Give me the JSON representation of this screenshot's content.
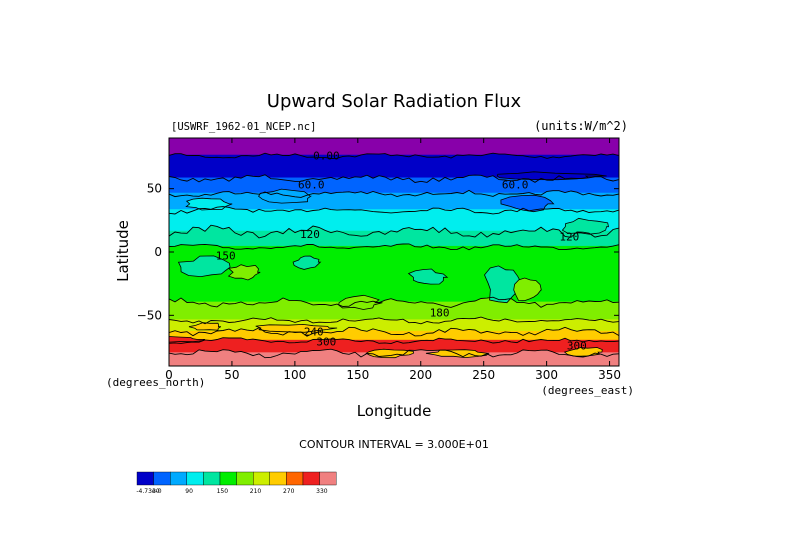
{
  "chart_data": {
    "type": "heatmap",
    "title": "Upward Solar Radiation Flux",
    "dataset_label": "[USWRF_1962-01_NCEP.nc]",
    "units_label": "(units:W/m^2)",
    "xlabel": "Longitude",
    "ylabel": "Latitude",
    "x_unit_note": "(degrees_east)",
    "y_unit_note": "(degrees_north)",
    "xlim": [
      0,
      357.5
    ],
    "ylim": [
      -90,
      90
    ],
    "x_ticks": [
      0,
      50,
      100,
      150,
      200,
      250,
      300,
      350
    ],
    "y_ticks": [
      50,
      0,
      -50
    ],
    "y_tick_labels": [
      "50",
      "0",
      "−50"
    ],
    "contour_interval_text": "CONTOUR INTERVAL = 3.000E+01",
    "contour_labels": [
      {
        "text": "0.00",
        "lon": 125,
        "lat": 73
      },
      {
        "text": "60.0",
        "lon": 113,
        "lat": 50
      },
      {
        "text": "60.0",
        "lon": 275,
        "lat": 50
      },
      {
        "text": "120",
        "lon": 112,
        "lat": 11
      },
      {
        "text": "120",
        "lon": 318,
        "lat": 9
      },
      {
        "text": "150",
        "lon": 45,
        "lat": -6
      },
      {
        "text": "180",
        "lon": 215,
        "lat": -51
      },
      {
        "text": "240",
        "lon": 115,
        "lat": -66
      },
      {
        "text": "300",
        "lon": 125,
        "lat": -74
      },
      {
        "text": "300",
        "lon": 324,
        "lat": -77
      }
    ],
    "bands": [
      {
        "lat_top": 90,
        "lat_bottom": 76,
        "color": "#8800aa",
        "level": "< 0"
      },
      {
        "lat_top": 76,
        "lat_bottom": 58,
        "color": "#0000c8",
        "level": "0-30"
      },
      {
        "lat_top": 58,
        "lat_bottom": 46,
        "color": "#0064ff",
        "level": "30-60"
      },
      {
        "lat_top": 46,
        "lat_bottom": 33,
        "color": "#00aaff",
        "level": "60-90"
      },
      {
        "lat_top": 33,
        "lat_bottom": 16,
        "color": "#00eeee",
        "level": "90-120"
      },
      {
        "lat_top": 16,
        "lat_bottom": 4,
        "color": "#00e6a0",
        "level": "120-150"
      },
      {
        "lat_top": 4,
        "lat_bottom": -40,
        "color": "#00ee00",
        "level": "150-180"
      },
      {
        "lat_top": -40,
        "lat_bottom": -54,
        "color": "#80ee00",
        "level": "180-210"
      },
      {
        "lat_top": -54,
        "lat_bottom": -63,
        "color": "#ccee00",
        "level": "210-240"
      },
      {
        "lat_top": -63,
        "lat_bottom": -70,
        "color": "#ffcc00",
        "level": "240-270"
      },
      {
        "lat_top": -70,
        "lat_bottom": -80,
        "color": "#ee2020",
        "level": "270-300"
      },
      {
        "lat_top": -80,
        "lat_bottom": -90,
        "color": "#f08080",
        "level": "> 330"
      }
    ],
    "patches": [
      {
        "lon": 30,
        "lat": 38,
        "rlon": 18,
        "rlat": 5,
        "color": "#00eeee"
      },
      {
        "lon": 95,
        "lat": 44,
        "rlon": 22,
        "rlat": 5,
        "color": "#00aaff"
      },
      {
        "lon": 285,
        "lat": 38,
        "rlon": 20,
        "rlat": 6,
        "color": "#0064ff"
      },
      {
        "lon": 300,
        "lat": 60,
        "rlon": 40,
        "rlat": 3,
        "color": "#0000c8"
      },
      {
        "lon": 30,
        "lat": -12,
        "rlon": 22,
        "rlat": 8,
        "color": "#00e6a0"
      },
      {
        "lon": 60,
        "lat": -16,
        "rlon": 12,
        "rlat": 6,
        "color": "#80ee00"
      },
      {
        "lon": 110,
        "lat": -8,
        "rlon": 10,
        "rlat": 5,
        "color": "#00e6a0"
      },
      {
        "lon": 205,
        "lat": -20,
        "rlon": 14,
        "rlat": 6,
        "color": "#00e6a0"
      },
      {
        "lon": 265,
        "lat": -25,
        "rlon": 14,
        "rlat": 14,
        "color": "#00e6a0"
      },
      {
        "lon": 285,
        "lat": -30,
        "rlon": 10,
        "rlat": 9,
        "color": "#80ee00"
      },
      {
        "lon": 330,
        "lat": 20,
        "rlon": 18,
        "rlat": 6,
        "color": "#00e6a0"
      },
      {
        "lon": 150,
        "lat": -40,
        "rlon": 18,
        "rlat": 5,
        "color": "#80ee00"
      },
      {
        "lon": 30,
        "lat": -59,
        "rlon": 12,
        "rlat": 3,
        "color": "#ffcc00"
      },
      {
        "lon": 100,
        "lat": -60,
        "rlon": 30,
        "rlat": 3,
        "color": "#ffcc00"
      },
      {
        "lon": 175,
        "lat": -80,
        "rlon": 18,
        "rlat": 3,
        "color": "#ffcc00"
      },
      {
        "lon": 230,
        "lat": -80,
        "rlon": 22,
        "rlat": 3,
        "color": "#ffcc00"
      },
      {
        "lon": 330,
        "lat": -79,
        "rlon": 14,
        "rlat": 4,
        "color": "#ffcc00"
      },
      {
        "lon": 5,
        "lat": -69,
        "rlon": 20,
        "rlat": 2,
        "color": "#ee2020"
      }
    ],
    "colorbar": {
      "colors": [
        "#0000c8",
        "#0064ff",
        "#00aaff",
        "#00eeee",
        "#00e6a0",
        "#00ee00",
        "#80ee00",
        "#ccee00",
        "#ffcc00",
        "#ff6600",
        "#ee2020",
        "#f08080"
      ],
      "labels": [
        "-4.73e-0",
        "30",
        "90",
        "150",
        "210",
        "270",
        "330"
      ],
      "label_positions": [
        0,
        2,
        4,
        6,
        8,
        10,
        12
      ]
    }
  }
}
